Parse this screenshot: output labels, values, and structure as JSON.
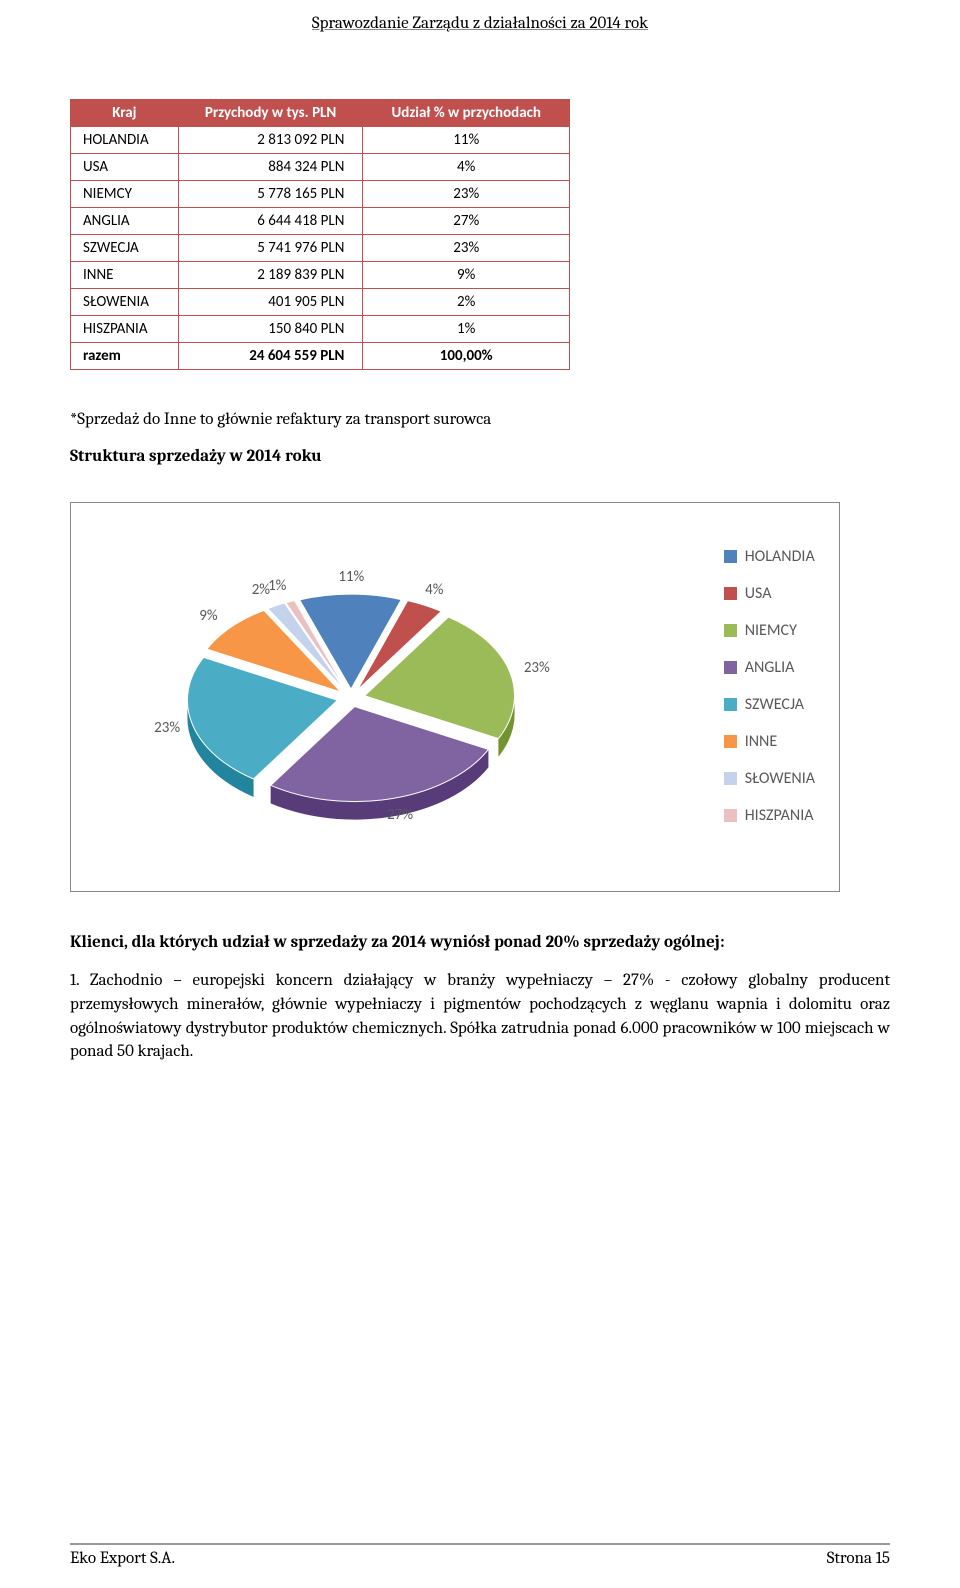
{
  "header": {
    "title": "Sprawozdanie Zarządu z działalności za 2014 rok"
  },
  "table": {
    "headers": {
      "c1": "Kraj",
      "c2": "Przychody w tys. PLN",
      "c3": "Udział % w przychodach"
    },
    "rows": [
      {
        "country": "HOLANDIA",
        "value": "2 813 092 PLN",
        "pct": "11%"
      },
      {
        "country": "USA",
        "value": "884 324 PLN",
        "pct": "4%"
      },
      {
        "country": "NIEMCY",
        "value": "5 778 165 PLN",
        "pct": "23%"
      },
      {
        "country": "ANGLIA",
        "value": "6 644 418 PLN",
        "pct": "27%"
      },
      {
        "country": "SZWECJA",
        "value": "5 741 976 PLN",
        "pct": "23%"
      },
      {
        "country": "INNE",
        "value": "2 189 839 PLN",
        "pct": "9%"
      },
      {
        "country": "SŁOWENIA",
        "value": "401 905 PLN",
        "pct": "2%"
      },
      {
        "country": "HISZPANIA",
        "value": "150 840 PLN",
        "pct": "1%"
      }
    ],
    "total": {
      "label": "razem",
      "value": "24 604 559 PLN",
      "pct": "100,00%"
    }
  },
  "note": "*Sprzedaż do Inne to głównie refaktury za transport surowca",
  "subheading": "Struktura sprzedaży w 2014 roku",
  "chart": {
    "type": "pie",
    "exploded": true,
    "background_color": "#ffffff",
    "label_color": "#595959",
    "label_fontsize": 15,
    "slices": [
      {
        "label": "HOLANDIA",
        "pct": 11,
        "color": "#4f81bd"
      },
      {
        "label": "USA",
        "pct": 4,
        "color": "#c0504d"
      },
      {
        "label": "NIEMCY",
        "pct": 23,
        "color": "#9bbb59"
      },
      {
        "label": "ANGLIA",
        "pct": 27,
        "color": "#8064a2"
      },
      {
        "label": "SZWECJA",
        "pct": 23,
        "color": "#4bacc6"
      },
      {
        "label": "INNE",
        "pct": 9,
        "color": "#f79646"
      },
      {
        "label": "SŁOWENIA",
        "pct": 2,
        "color": "#c4d2ec"
      },
      {
        "label": "HISZPANIA",
        "pct": 1,
        "color": "#eac0c0"
      }
    ],
    "slice_labels": [
      "11%",
      "4%",
      "23%",
      "27%",
      "23%",
      "9%",
      "2%",
      "1%"
    ],
    "legend_items": [
      "HOLANDIA",
      "USA",
      "NIEMCY",
      "ANGLIA",
      "SZWECJA",
      "INNE",
      "SŁOWENIA",
      "HISZPANIA"
    ],
    "legend_colors": [
      "#4f81bd",
      "#c0504d",
      "#9bbb59",
      "#8064a2",
      "#4bacc6",
      "#f79646",
      "#c4d2ec",
      "#eac0c0"
    ]
  },
  "body": {
    "clients_heading": "Klienci, dla których udział w sprzedaży za 2014 wyniósł ponad 20% sprzedaży ogólnej:",
    "item1": "1. Zachodnio – europejski koncern działający w branży wypełniaczy – 27%  - czołowy globalny producent przemysłowych minerałów, głównie wypełniaczy i pigmentów pochodzących z węglanu wapnia i dolomitu oraz ogólnoświatowy dystrybutor produktów chemicznych. Spółka zatrudnia ponad 6.000 pracowników w 100 miejscach w ponad 50 krajach."
  },
  "footer": {
    "left": "Eko Export S.A.",
    "right": "Strona 15"
  }
}
